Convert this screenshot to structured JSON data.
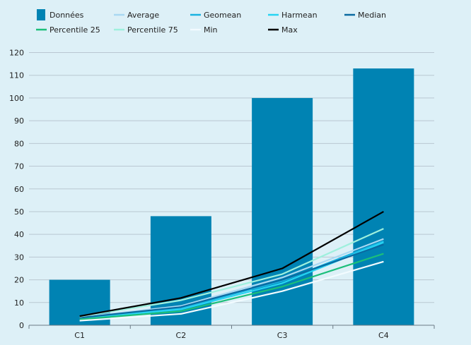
{
  "chart_data": {
    "type": "bar",
    "categories": [
      "C1",
      "C2",
      "C3",
      "C4"
    ],
    "bar_series": {
      "name": "Données",
      "color": "#0083b3",
      "values": [
        20,
        48,
        100,
        113
      ]
    },
    "line_series": [
      {
        "name": "Average",
        "color": "#a9d8f2",
        "values": [
          3.5,
          8.5,
          21,
          38
        ]
      },
      {
        "name": "Geomean",
        "color": "#1ab2e0",
        "values": [
          3.2,
          7.5,
          19.5,
          37
        ]
      },
      {
        "name": "Harmean",
        "color": "#26d4f2",
        "values": [
          3.0,
          7.0,
          18.5,
          36.5
        ]
      },
      {
        "name": "Median",
        "color": "#0a6aa1",
        "values": [
          3.3,
          8.0,
          20,
          35.5
        ]
      },
      {
        "name": "Percentile 25",
        "color": "#1cbf7a",
        "values": [
          2.6,
          6.2,
          17,
          31.5
        ]
      },
      {
        "name": "Percentile 75",
        "color": "#9ef0dd",
        "values": [
          3.8,
          11,
          22.5,
          42.5
        ]
      },
      {
        "name": "Min",
        "color": "#f2fbff",
        "values": [
          2,
          5,
          15,
          28
        ]
      },
      {
        "name": "Max",
        "color": "#000000",
        "values": [
          4,
          12,
          25,
          50
        ]
      }
    ],
    "y_ticks": [
      "0",
      "10",
      "20",
      "30",
      "40",
      "50",
      "60",
      "70",
      "80",
      "90",
      "100",
      "110",
      "120"
    ],
    "ylim": [
      0,
      120
    ],
    "grid": true,
    "legend_position": "top"
  }
}
